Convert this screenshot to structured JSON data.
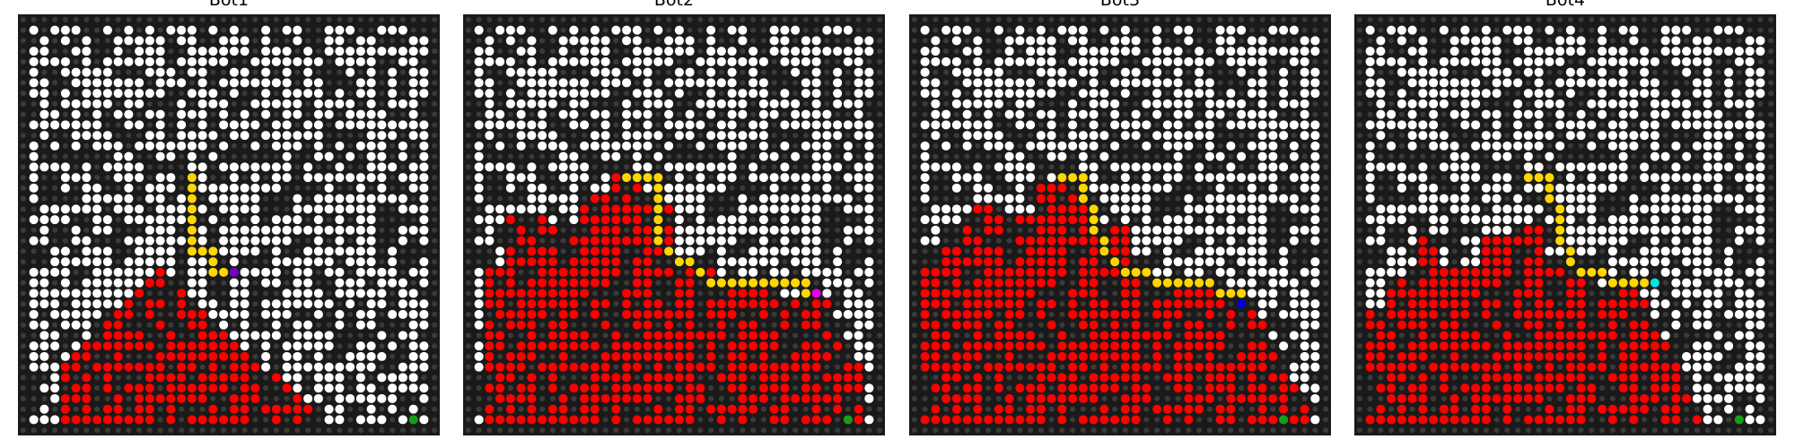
{
  "figure": {
    "panels": [
      {
        "title": "Bot1"
      },
      {
        "title": "Bot2"
      },
      {
        "title": "Bot3"
      },
      {
        "title": "Bot4"
      }
    ]
  },
  "colors": {
    "background": "#ffffff",
    "wall": "#1a1a1a",
    "wall_dot": "#3a3a3a",
    "open": "#ffffff",
    "fire": "#ff0000",
    "path": "#ffd700",
    "goal": "#1a9e1a",
    "bot1": "#7a00c8",
    "bot2": "#e600e6",
    "bot3": "#0000e0",
    "bot4": "#00e6e6"
  },
  "icons": {
    "bot": "filled-circle",
    "goal": "filled-circle",
    "fire": "filled-circle"
  }
}
